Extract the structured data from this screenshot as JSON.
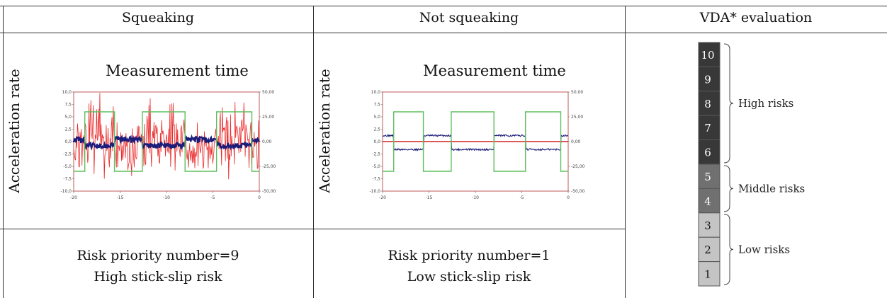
{
  "headers": {
    "squeaking": "Squeaking",
    "not_squeaking": "Not squeaking",
    "vda": "VDA* evaluation"
  },
  "panels": {
    "squeaking": {
      "ylabel": "Acceleration rate",
      "title": "Measurement time",
      "risk_line1": "Risk priority number=9",
      "risk_line2": "High stick-slip risk"
    },
    "not_squeaking": {
      "ylabel": "Acceleration rate",
      "title": "Measurement time",
      "risk_line1": "Risk priority number=1",
      "risk_line2": "Low stick-slip risk"
    }
  },
  "vda_scale": {
    "levels": [
      "10",
      "9",
      "8",
      "7",
      "6",
      "5",
      "4",
      "3",
      "2",
      "1"
    ],
    "groups": [
      {
        "label": "High risks",
        "from": "10",
        "to": "6",
        "color": "#383838",
        "text_color": "#ffffff"
      },
      {
        "label": "Middle risks",
        "from": "5",
        "to": "4",
        "color": "#707070",
        "text_color": "#ffffff"
      },
      {
        "label": "Low risks",
        "from": "3",
        "to": "1",
        "color": "#c4c4c4",
        "text_color": "#111111"
      }
    ]
  },
  "chart_data": [
    {
      "type": "line",
      "panel": "Squeaking",
      "title": "Measurement time",
      "ylabel": "Acceleration rate",
      "xlim": [
        -20,
        0
      ],
      "ylim_left": [
        -10,
        10
      ],
      "ylim_right": [
        -50,
        50
      ],
      "x_ticks": [
        "-20",
        "-15",
        "-10",
        "-5",
        "0"
      ],
      "y_ticks_left": [
        "10,0",
        "7,5",
        "5,0",
        "2,5",
        "0,0",
        "-2,5",
        "-5,0",
        "-7,5",
        "-10,0"
      ],
      "y_ticks_right": [
        "50,00",
        "25,00",
        "0,00",
        "-25,00",
        "-50,00"
      ],
      "series": [
        {
          "color": "#5fbf5f",
          "type": "square",
          "levels": [
            30,
            -30
          ],
          "transitions": [
            -20,
            -18.8,
            -15.6,
            -12.6,
            -8.0,
            -4.6,
            -0.8,
            0
          ]
        },
        {
          "color": "#1c1c7a",
          "type": "band",
          "mean_left": -0.8,
          "spread": 0.5
        },
        {
          "color": "#e82020",
          "type": "noise",
          "amplitude_left": 7.5
        }
      ]
    },
    {
      "type": "line",
      "panel": "Not squeaking",
      "title": "Measurement time",
      "ylabel": "Acceleration rate",
      "xlim": [
        -20,
        0
      ],
      "ylim_left": [
        -10,
        10
      ],
      "ylim_right": [
        -50,
        50
      ],
      "x_ticks": [
        "-20",
        "-15",
        "-10",
        "-5",
        "0"
      ],
      "y_ticks_left": [
        "10,0",
        "7,5",
        "5,0",
        "2,5",
        "0,0",
        "-2,5",
        "-5,0",
        "-7,5",
        "-10,0"
      ],
      "y_ticks_right": [
        "50,00",
        "25,00",
        "0,00",
        "-25,00",
        "-50,00"
      ],
      "series": [
        {
          "color": "#5fbf5f",
          "type": "square",
          "levels": [
            30,
            -30
          ],
          "transitions": [
            -20,
            -18.8,
            -15.6,
            -12.6,
            -8.0,
            -4.6,
            -0.8,
            0
          ]
        },
        {
          "color": "#1c1c7a",
          "type": "step",
          "high_left": 1.2,
          "low_left": -1.6
        },
        {
          "color": "#d02020",
          "type": "flat",
          "value_left": 0.0
        }
      ]
    }
  ]
}
